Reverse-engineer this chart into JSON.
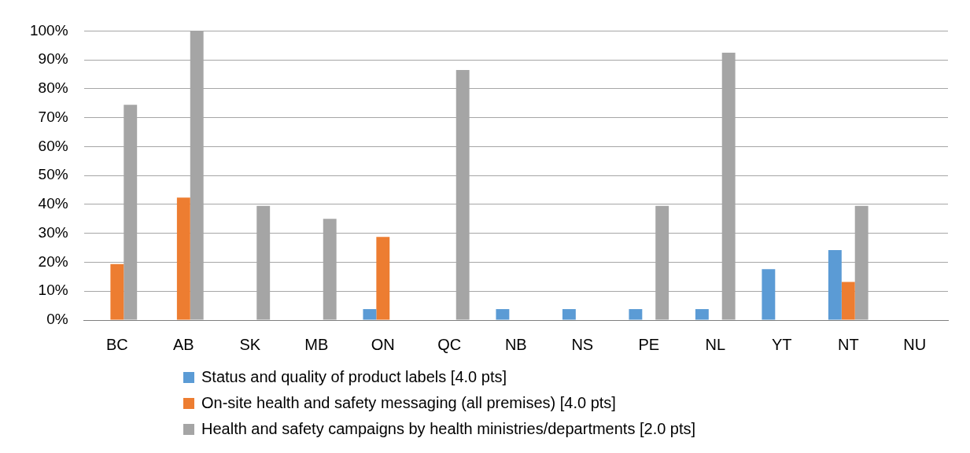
{
  "chart_data": {
    "type": "bar",
    "categories": [
      "BC",
      "AB",
      "SK",
      "MB",
      "ON",
      "QC",
      "NB",
      "NS",
      "PE",
      "NL",
      "YT",
      "NT",
      "NU"
    ],
    "series": [
      {
        "name": "Status and quality of product labels [4.0 pts]",
        "color": "#5b9bd5",
        "values": [
          0,
          0,
          0,
          0,
          3.8,
          0,
          3.8,
          3.8,
          3.8,
          3.8,
          17.6,
          24.2,
          0
        ]
      },
      {
        "name": "On-site health and safety messaging (all premises) [4.0 pts]",
        "color": "#ed7d31",
        "values": [
          19.4,
          42.4,
          0,
          0,
          28.8,
          0,
          0,
          0,
          0,
          0,
          0,
          13.2,
          0
        ]
      },
      {
        "name": "Health and safety campaigns by health ministries/departments [2.0 pts]",
        "color": "#a5a5a5",
        "values": [
          74.5,
          100,
          39.5,
          35,
          0,
          86.5,
          0,
          0,
          39.5,
          92.5,
          0,
          39.5,
          0
        ]
      }
    ],
    "ylim": [
      0,
      100
    ],
    "yticks": [
      {
        "value": 0,
        "label": "0%"
      },
      {
        "value": 10,
        "label": "10%"
      },
      {
        "value": 20,
        "label": "20%"
      },
      {
        "value": 30,
        "label": "30%"
      },
      {
        "value": 40,
        "label": "40%"
      },
      {
        "value": 50,
        "label": "50%"
      },
      {
        "value": 60,
        "label": "60%"
      },
      {
        "value": 70,
        "label": "70%"
      },
      {
        "value": 80,
        "label": "80%"
      },
      {
        "value": 90,
        "label": "90%"
      },
      {
        "value": 100,
        "label": "100%"
      }
    ],
    "grid": "y",
    "legend": "bottom"
  }
}
